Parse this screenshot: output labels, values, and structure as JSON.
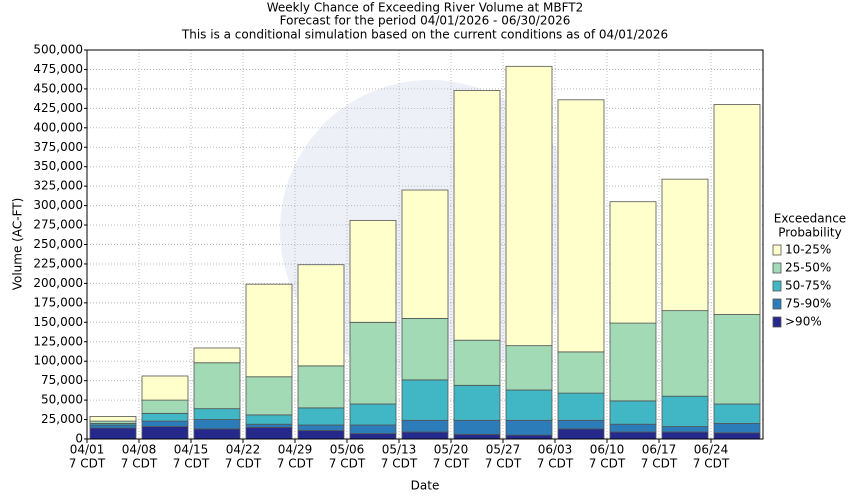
{
  "chart_data": {
    "type": "stacked_bar",
    "title": "Weekly Chance of Exceeding River Volume at MBFT2",
    "subtitles": [
      "Forecast for the period 04/01/2026 - 06/30/2026",
      "This is a conditional simulation based on the current conditions as of 04/01/2026"
    ],
    "x_label": "Date",
    "y_label": "Volume (AC-FT)",
    "legend_title": [
      "Exceedance",
      "Probability"
    ],
    "legend_position": "right",
    "grid": true,
    "categories": [
      [
        "04/01",
        "7 CDT"
      ],
      [
        "04/08",
        "7 CDT"
      ],
      [
        "04/15",
        "7 CDT"
      ],
      [
        "04/22",
        "7 CDT"
      ],
      [
        "04/29",
        "7 CDT"
      ],
      [
        "05/06",
        "7 CDT"
      ],
      [
        "05/13",
        "7 CDT"
      ],
      [
        "05/20",
        "7 CDT"
      ],
      [
        "05/27",
        "7 CDT"
      ],
      [
        "06/03",
        "7 CDT"
      ],
      [
        "06/10",
        "7 CDT"
      ],
      [
        "06/17",
        "7 CDT"
      ],
      [
        "06/24",
        "7 CDT"
      ]
    ],
    "series": [
      {
        "name": ">90%",
        "color": "#25298c",
        "values": [
          14000,
          16000,
          13000,
          15000,
          11000,
          7000,
          9000,
          6000,
          5000,
          13000,
          9000,
          9000,
          8000
        ]
      },
      {
        "name": "75-90%",
        "color": "#2c7cb9",
        "values": [
          4000,
          7000,
          12000,
          4000,
          7000,
          11000,
          15000,
          18000,
          19000,
          11000,
          10000,
          7000,
          12000
        ]
      },
      {
        "name": "50-75%",
        "color": "#41b6c4",
        "values": [
          2000,
          10000,
          14000,
          12000,
          22000,
          27000,
          52000,
          45000,
          39000,
          35000,
          30000,
          39000,
          25000
        ]
      },
      {
        "name": "25-50%",
        "color": "#a1dab4",
        "values": [
          3000,
          17000,
          59000,
          49000,
          54000,
          105000,
          79000,
          58000,
          57000,
          53000,
          100000,
          110000,
          115000
        ]
      },
      {
        "name": "10-25%",
        "color": "#ffffcc",
        "values": [
          6000,
          31000,
          19000,
          119000,
          130000,
          131000,
          165000,
          321000,
          359000,
          324000,
          156000,
          169000,
          270000
        ]
      }
    ],
    "ylim": [
      0,
      500000
    ],
    "yticks": [
      0,
      {
        "value": 25000,
        "label": "25,000"
      },
      {
        "value": 50000,
        "label": "50,000"
      },
      {
        "value": 75000,
        "label": "75,000"
      },
      {
        "value": 100000,
        "label": "100,000"
      },
      {
        "value": 125000,
        "label": "125,000"
      },
      {
        "value": 150000,
        "label": "150,000"
      },
      {
        "value": 175000,
        "label": "175,000"
      },
      {
        "value": 200000,
        "label": "200,000"
      },
      {
        "value": 225000,
        "label": "225,000"
      },
      {
        "value": 250000,
        "label": "250,000"
      },
      {
        "value": 275000,
        "label": "275,000"
      },
      {
        "value": 300000,
        "label": "300,000"
      },
      {
        "value": 325000,
        "label": "325,000"
      },
      {
        "value": 350000,
        "label": "350,000"
      },
      {
        "value": 375000,
        "label": "375,000"
      },
      {
        "value": 400000,
        "label": "400,000"
      },
      {
        "value": 425000,
        "label": "425,000"
      },
      {
        "value": 450000,
        "label": "450,000"
      },
      {
        "value": 475000,
        "label": "475,000"
      },
      {
        "value": 500000,
        "label": "500,000"
      }
    ]
  }
}
